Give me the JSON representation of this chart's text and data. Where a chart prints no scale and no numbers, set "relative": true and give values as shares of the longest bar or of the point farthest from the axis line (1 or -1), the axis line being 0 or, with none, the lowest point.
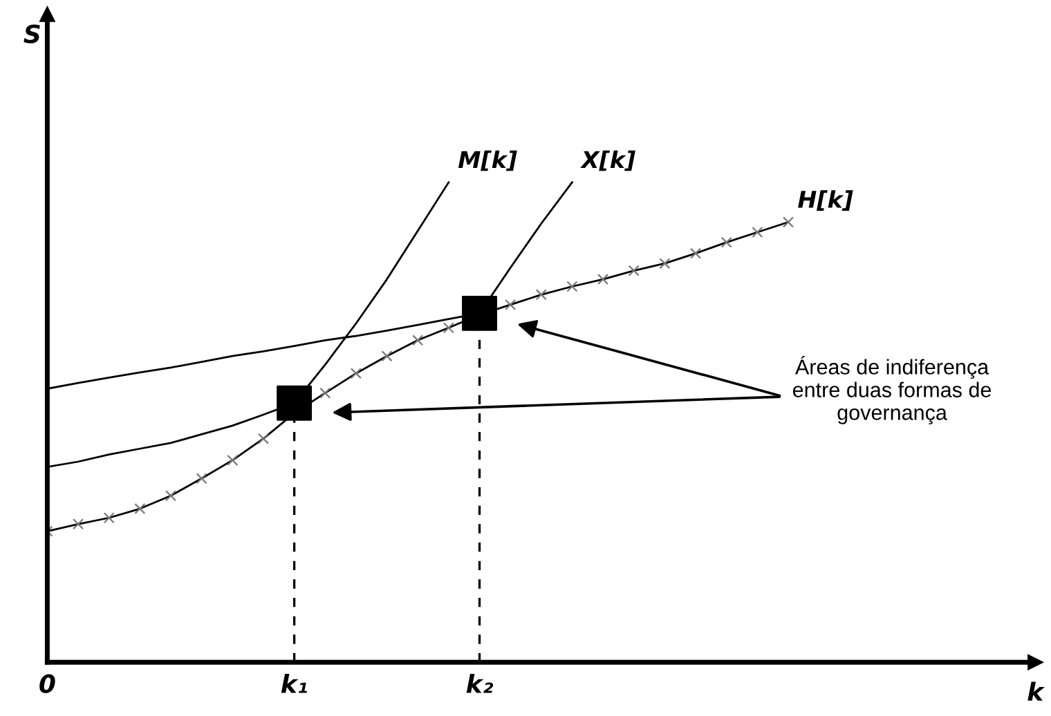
{
  "chart_data": {
    "type": "line",
    "relative": true,
    "xlabel": "k",
    "legend": false,
    "categories": [
      "0",
      null,
      null,
      null,
      null,
      null,
      null,
      null,
      "k₁",
      null,
      null,
      null,
      null,
      null,
      "k₂",
      null,
      null,
      null,
      null,
      null,
      null,
      null,
      null,
      null,
      null,
      null,
      null,
      null,
      null,
      null,
      null,
      null,
      null
    ],
    "series": [
      {
        "name": "H[k]",
        "marker": "cross",
        "color": "#000000",
        "values": [
          0.273,
          0.288,
          0.301,
          0.32,
          0.347,
          0.383,
          0.421,
          0.466,
          0.519,
          0.561,
          0.602,
          0.638,
          0.671,
          0.697,
          0.724,
          0.745,
          0.766,
          0.783,
          0.798,
          0.816,
          0.831,
          0.852,
          0.875,
          0.896,
          0.917,
          null,
          null,
          null,
          null,
          null,
          null,
          null,
          null
        ]
      },
      {
        "name": "M[k]",
        "color": "#000000",
        "values": [
          0.407,
          0.418,
          0.433,
          0.445,
          0.457,
          0.475,
          0.493,
          0.516,
          0.54,
          0.62,
          0.706,
          0.798,
          0.899,
          1.0,
          null,
          null,
          null,
          null,
          null,
          null,
          null,
          null,
          null,
          null,
          null,
          null,
          null,
          null,
          null,
          null,
          null,
          null,
          null
        ]
      },
      {
        "name": "X[k]",
        "color": "#000000",
        "values": [
          0.57,
          0.582,
          0.593,
          0.604,
          0.614,
          0.626,
          0.638,
          0.648,
          0.659,
          0.671,
          0.68,
          0.691,
          0.703,
          0.715,
          0.727,
          0.822,
          0.914,
          1.0,
          null,
          null,
          null,
          null,
          null,
          null,
          null,
          null,
          null,
          null,
          null,
          null,
          null,
          null,
          null
        ]
      },
      {
        "type": "lollipop",
        "marker": "square",
        "line_style": "dashed",
        "color": "#000000",
        "values": [
          null,
          null,
          null,
          null,
          null,
          null,
          null,
          null,
          0.54,
          null,
          null,
          null,
          null,
          null,
          0.727,
          null,
          null,
          null,
          null,
          null,
          null,
          null,
          null,
          null,
          null,
          null,
          null,
          null,
          null,
          null,
          null,
          null,
          null
        ]
      }
    ],
    "annotations": [
      "S",
      "Áreas de indiferença\nentre duas formas de\ngovernança"
    ]
  }
}
